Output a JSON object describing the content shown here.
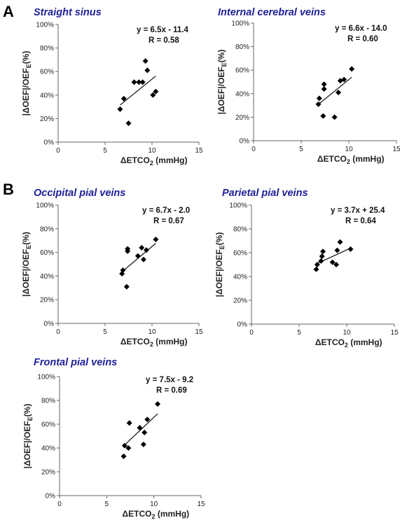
{
  "panel_letters": [
    "A",
    "B"
  ],
  "chart_data": [
    {
      "type": "scatter",
      "title": "Straight sinus",
      "xlabel": "ΔETCO2 (mmHg)",
      "ylabel": "|ΔOEF|/OEFE(%)",
      "xlim": [
        0,
        15
      ],
      "ylim": [
        0,
        100
      ],
      "xticks": [
        0,
        5,
        10,
        15
      ],
      "yticks": [
        0,
        20,
        40,
        60,
        80,
        100
      ],
      "x": [
        6.6,
        7.0,
        7.5,
        8.1,
        8.6,
        9.0,
        9.3,
        9.5,
        10.1,
        10.4
      ],
      "y": [
        28,
        37,
        16,
        51,
        51,
        51,
        69,
        61,
        40,
        43
      ],
      "fit": {
        "slope": 6.5,
        "intercept": -11.4,
        "equation": "y = 6.5x - 11.4",
        "r_text": "R = 0.58",
        "x_range": [
          6.6,
          10.4
        ]
      }
    },
    {
      "type": "scatter",
      "title": "Internal cerebral veins",
      "xlabel": "ΔETCO2 (mmHg)",
      "ylabel": "|ΔOEF|/OEFE(%)",
      "xlim": [
        0,
        15
      ],
      "ylim": [
        0,
        100
      ],
      "xticks": [
        0,
        5,
        10,
        15
      ],
      "yticks": [
        0,
        20,
        40,
        60,
        80,
        100
      ],
      "x": [
        6.8,
        6.9,
        7.3,
        7.4,
        7.4,
        8.5,
        8.9,
        9.1,
        9.5,
        10.3
      ],
      "y": [
        31,
        36,
        21,
        44,
        48,
        20,
        41,
        51,
        52,
        61
      ],
      "fit": {
        "slope": 6.6,
        "intercept": -14.0,
        "equation": "y = 6.6x - 14.0",
        "r_text": "R = 0.60",
        "x_range": [
          6.8,
          10.3
        ]
      }
    },
    {
      "type": "scatter",
      "title": "Occipital pial veins",
      "xlabel": "ΔETCO2 (mmHg)",
      "ylabel": "|ΔOEF|/OEFE(%)",
      "xlim": [
        0,
        15
      ],
      "ylim": [
        0,
        100
      ],
      "xticks": [
        0,
        5,
        10,
        15
      ],
      "yticks": [
        0,
        20,
        40,
        60,
        80,
        100
      ],
      "x": [
        6.8,
        6.9,
        7.3,
        7.4,
        7.4,
        8.5,
        8.9,
        9.1,
        9.4,
        10.4
      ],
      "y": [
        42,
        45,
        31,
        61,
        63,
        57,
        64,
        54,
        62,
        71
      ],
      "fit": {
        "slope": 6.7,
        "intercept": -2.0,
        "equation": "y = 6.7x - 2.0",
        "r_text": "R = 0.67",
        "x_range": [
          6.8,
          10.4
        ]
      }
    },
    {
      "type": "scatter",
      "title": "Parietal pial veins",
      "xlabel": "ΔETCO2 (mmHg)",
      "ylabel": "|ΔOEF|/OEFE(%)",
      "xlim": [
        0,
        15
      ],
      "ylim": [
        0,
        100
      ],
      "xticks": [
        0,
        5,
        10,
        15
      ],
      "yticks": [
        0,
        20,
        40,
        60,
        80,
        100
      ],
      "x": [
        6.8,
        6.9,
        7.3,
        7.4,
        7.5,
        8.5,
        8.9,
        9.0,
        9.3,
        10.4
      ],
      "y": [
        46,
        50,
        53,
        57,
        61,
        52,
        50,
        62,
        69,
        63
      ],
      "fit": {
        "slope": 3.7,
        "intercept": 25.4,
        "equation": "y = 3.7x + 25.4",
        "r_text": "R = 0.64",
        "x_range": [
          6.8,
          10.4
        ]
      }
    },
    {
      "type": "scatter",
      "title": "Frontal pial veins",
      "xlabel": "ΔETCO2 (mmHg)",
      "ylabel": "|ΔOEF|/OEFE(%)",
      "xlim": [
        0,
        15
      ],
      "ylim": [
        0,
        100
      ],
      "xticks": [
        0,
        5,
        10,
        15
      ],
      "yticks": [
        0,
        20,
        40,
        60,
        80,
        100
      ],
      "x": [
        6.8,
        6.9,
        7.3,
        7.4,
        8.5,
        8.9,
        9.0,
        9.3,
        10.4
      ],
      "y": [
        33,
        42,
        40,
        61,
        57,
        43,
        53,
        64,
        77
      ],
      "fit": {
        "slope": 7.5,
        "intercept": -9.2,
        "equation": "y = 7.5x - 9.2",
        "r_text": "R = 0.69",
        "x_range": [
          6.8,
          10.4
        ]
      }
    }
  ]
}
